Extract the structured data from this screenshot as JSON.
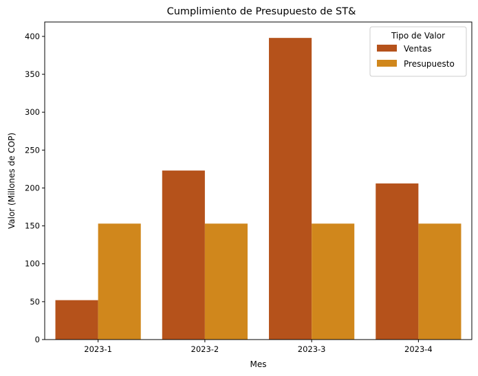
{
  "chart_data": {
    "type": "bar",
    "title": "Cumplimiento de Presupuesto de ST&",
    "xlabel": "Mes",
    "ylabel": "Valor (Millones de COP)",
    "categories": [
      "2023-1",
      "2023-2",
      "2023-3",
      "2023-4"
    ],
    "series": [
      {
        "name": "Ventas",
        "color": "#b5521b",
        "values": [
          52,
          223,
          398,
          206
        ]
      },
      {
        "name": "Presupuesto",
        "color": "#d0871c",
        "values": [
          153,
          153,
          153,
          153
        ]
      }
    ],
    "ylim": [
      0,
      419
    ],
    "yticks": [
      0,
      50,
      100,
      150,
      200,
      250,
      300,
      350,
      400
    ],
    "grid": false,
    "legend": {
      "title": "Tipo de Valor",
      "position": "top-right"
    }
  }
}
